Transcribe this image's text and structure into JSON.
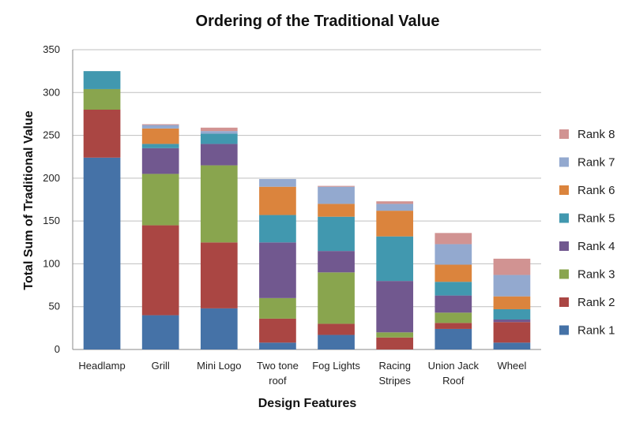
{
  "chart_data": {
    "type": "bar",
    "stacked": true,
    "title": "Ordering of the Traditional Value",
    "xlabel": "Design Features",
    "ylabel": "Total Sum of Traditional Value",
    "ylim": [
      0,
      350
    ],
    "yticks": [
      0,
      50,
      100,
      150,
      200,
      250,
      300,
      350
    ],
    "grid": true,
    "legend_position": "right",
    "categories": [
      [
        "Headlamp"
      ],
      [
        "Grill"
      ],
      [
        "Mini Logo"
      ],
      [
        "Two tone",
        "roof"
      ],
      [
        "Fog Lights"
      ],
      [
        "Racing",
        "Stripes"
      ],
      [
        "Union Jack",
        "Roof"
      ],
      [
        "Wheel"
      ]
    ],
    "series": [
      {
        "name": "Rank 1",
        "color": "#4572A7",
        "values": [
          224,
          40,
          48,
          8,
          17,
          0,
          24,
          8
        ]
      },
      {
        "name": "Rank 2",
        "color": "#AA4643",
        "values": [
          56,
          105,
          77,
          28,
          13,
          14,
          7,
          24
        ]
      },
      {
        "name": "Rank 3",
        "color": "#89A54E",
        "values": [
          24,
          60,
          90,
          24,
          60,
          6,
          12,
          0
        ]
      },
      {
        "name": "Rank 4",
        "color": "#71588F",
        "values": [
          0,
          30,
          25,
          65,
          25,
          60,
          20,
          3
        ]
      },
      {
        "name": "Rank 5",
        "color": "#4198AF",
        "values": [
          21,
          5,
          12,
          32,
          40,
          52,
          16,
          12
        ]
      },
      {
        "name": "Rank 6",
        "color": "#DB843D",
        "values": [
          0,
          18,
          0,
          33,
          15,
          30,
          20,
          15
        ]
      },
      {
        "name": "Rank 7",
        "color": "#93A9CF",
        "values": [
          0,
          4,
          3,
          9,
          20,
          8,
          24,
          25
        ]
      },
      {
        "name": "Rank 8",
        "color": "#D19392",
        "values": [
          0,
          1,
          4,
          0,
          1,
          3,
          13,
          19
        ]
      }
    ]
  }
}
